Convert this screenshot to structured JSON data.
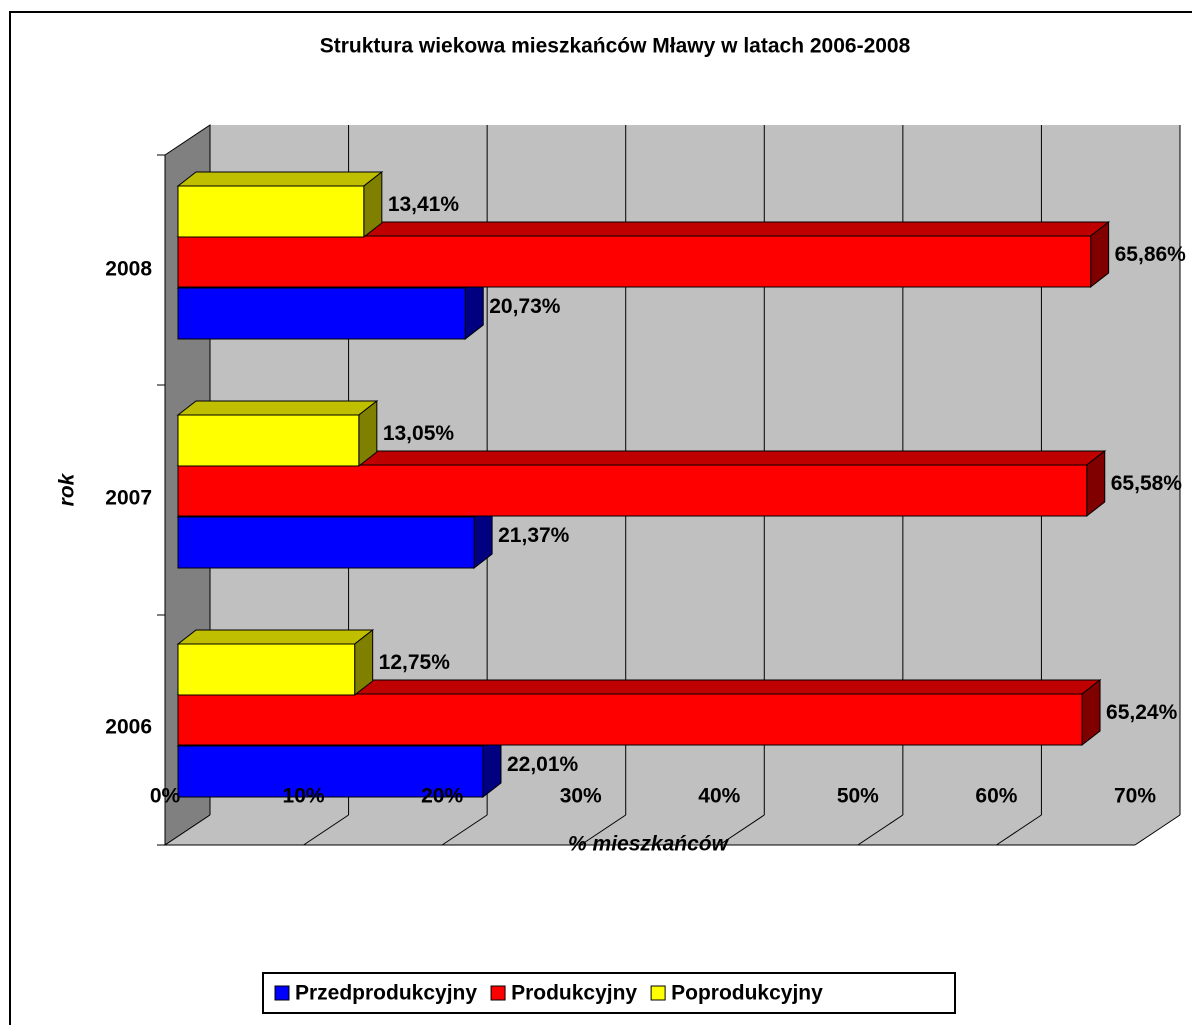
{
  "chart_data": {
    "type": "bar3d_horizontal",
    "title": "Struktura wiekowa mieszkańców Mławy w latach 2006-2008",
    "x_label": "% mieszkańców",
    "y_label": "rok",
    "categories": [
      "2006",
      "2007",
      "2008"
    ],
    "series": [
      {
        "name": "Przedprodukcyjny",
        "color": "#0000ff",
        "values": [
          22.01,
          21.37,
          20.73
        ],
        "value_labels": [
          "22,01%",
          "21,37%",
          "20,73%"
        ]
      },
      {
        "name": "Produkcyjny",
        "color": "#ff0000",
        "values": [
          65.24,
          65.58,
          65.86
        ],
        "value_labels": [
          "65,24%",
          "65,58%",
          "65,86%"
        ]
      },
      {
        "name": "Poprodukcyjny",
        "color": "#ffff00",
        "values": [
          12.75,
          13.05,
          13.41
        ],
        "value_labels": [
          "12,75%",
          "13,05%",
          "13,41%"
        ]
      }
    ],
    "xlim": [
      0,
      70
    ],
    "xticks": [
      {
        "value": 0,
        "label": "0%"
      },
      {
        "value": 10,
        "label": "10%"
      },
      {
        "value": 20,
        "label": "20%"
      },
      {
        "value": 30,
        "label": "30%"
      },
      {
        "value": 40,
        "label": "40%"
      },
      {
        "value": 50,
        "label": "50%"
      },
      {
        "value": 60,
        "label": "60%"
      },
      {
        "value": 70,
        "label": "70%"
      }
    ],
    "grid": true,
    "legend": "bottom"
  }
}
